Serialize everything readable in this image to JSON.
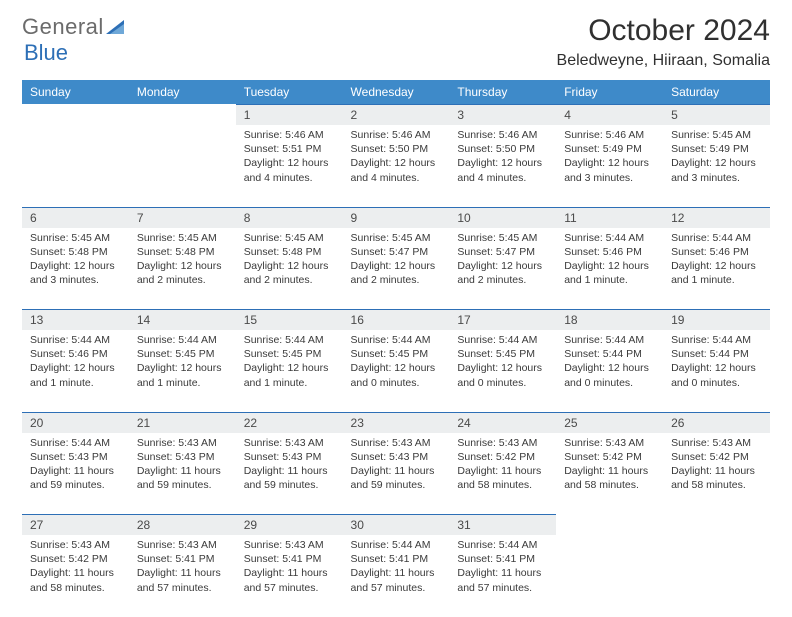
{
  "brand": {
    "text1": "General",
    "text2": "Blue",
    "tri_color": "#2d6fb6",
    "text_color": "#6b6b6b"
  },
  "title": {
    "month": "October 2024",
    "location": "Beledweyne, Hiiraan, Somalia"
  },
  "colors": {
    "header_bg": "#3e8ac9",
    "header_fg": "#ffffff",
    "daynum_bg": "#eceeef",
    "daynum_border": "#2d6fb6",
    "body_bg": "#ffffff",
    "text": "#333333"
  },
  "weekdays": [
    "Sunday",
    "Monday",
    "Tuesday",
    "Wednesday",
    "Thursday",
    "Friday",
    "Saturday"
  ],
  "weeks": [
    [
      null,
      null,
      {
        "n": "1",
        "sr": "5:46 AM",
        "ss": "5:51 PM",
        "dl": "12 hours and 4 minutes."
      },
      {
        "n": "2",
        "sr": "5:46 AM",
        "ss": "5:50 PM",
        "dl": "12 hours and 4 minutes."
      },
      {
        "n": "3",
        "sr": "5:46 AM",
        "ss": "5:50 PM",
        "dl": "12 hours and 4 minutes."
      },
      {
        "n": "4",
        "sr": "5:46 AM",
        "ss": "5:49 PM",
        "dl": "12 hours and 3 minutes."
      },
      {
        "n": "5",
        "sr": "5:45 AM",
        "ss": "5:49 PM",
        "dl": "12 hours and 3 minutes."
      }
    ],
    [
      {
        "n": "6",
        "sr": "5:45 AM",
        "ss": "5:48 PM",
        "dl": "12 hours and 3 minutes."
      },
      {
        "n": "7",
        "sr": "5:45 AM",
        "ss": "5:48 PM",
        "dl": "12 hours and 2 minutes."
      },
      {
        "n": "8",
        "sr": "5:45 AM",
        "ss": "5:48 PM",
        "dl": "12 hours and 2 minutes."
      },
      {
        "n": "9",
        "sr": "5:45 AM",
        "ss": "5:47 PM",
        "dl": "12 hours and 2 minutes."
      },
      {
        "n": "10",
        "sr": "5:45 AM",
        "ss": "5:47 PM",
        "dl": "12 hours and 2 minutes."
      },
      {
        "n": "11",
        "sr": "5:44 AM",
        "ss": "5:46 PM",
        "dl": "12 hours and 1 minute."
      },
      {
        "n": "12",
        "sr": "5:44 AM",
        "ss": "5:46 PM",
        "dl": "12 hours and 1 minute."
      }
    ],
    [
      {
        "n": "13",
        "sr": "5:44 AM",
        "ss": "5:46 PM",
        "dl": "12 hours and 1 minute."
      },
      {
        "n": "14",
        "sr": "5:44 AM",
        "ss": "5:45 PM",
        "dl": "12 hours and 1 minute."
      },
      {
        "n": "15",
        "sr": "5:44 AM",
        "ss": "5:45 PM",
        "dl": "12 hours and 1 minute."
      },
      {
        "n": "16",
        "sr": "5:44 AM",
        "ss": "5:45 PM",
        "dl": "12 hours and 0 minutes."
      },
      {
        "n": "17",
        "sr": "5:44 AM",
        "ss": "5:45 PM",
        "dl": "12 hours and 0 minutes."
      },
      {
        "n": "18",
        "sr": "5:44 AM",
        "ss": "5:44 PM",
        "dl": "12 hours and 0 minutes."
      },
      {
        "n": "19",
        "sr": "5:44 AM",
        "ss": "5:44 PM",
        "dl": "12 hours and 0 minutes."
      }
    ],
    [
      {
        "n": "20",
        "sr": "5:44 AM",
        "ss": "5:43 PM",
        "dl": "11 hours and 59 minutes."
      },
      {
        "n": "21",
        "sr": "5:43 AM",
        "ss": "5:43 PM",
        "dl": "11 hours and 59 minutes."
      },
      {
        "n": "22",
        "sr": "5:43 AM",
        "ss": "5:43 PM",
        "dl": "11 hours and 59 minutes."
      },
      {
        "n": "23",
        "sr": "5:43 AM",
        "ss": "5:43 PM",
        "dl": "11 hours and 59 minutes."
      },
      {
        "n": "24",
        "sr": "5:43 AM",
        "ss": "5:42 PM",
        "dl": "11 hours and 58 minutes."
      },
      {
        "n": "25",
        "sr": "5:43 AM",
        "ss": "5:42 PM",
        "dl": "11 hours and 58 minutes."
      },
      {
        "n": "26",
        "sr": "5:43 AM",
        "ss": "5:42 PM",
        "dl": "11 hours and 58 minutes."
      }
    ],
    [
      {
        "n": "27",
        "sr": "5:43 AM",
        "ss": "5:42 PM",
        "dl": "11 hours and 58 minutes."
      },
      {
        "n": "28",
        "sr": "5:43 AM",
        "ss": "5:41 PM",
        "dl": "11 hours and 57 minutes."
      },
      {
        "n": "29",
        "sr": "5:43 AM",
        "ss": "5:41 PM",
        "dl": "11 hours and 57 minutes."
      },
      {
        "n": "30",
        "sr": "5:44 AM",
        "ss": "5:41 PM",
        "dl": "11 hours and 57 minutes."
      },
      {
        "n": "31",
        "sr": "5:44 AM",
        "ss": "5:41 PM",
        "dl": "11 hours and 57 minutes."
      },
      null,
      null
    ]
  ],
  "labels": {
    "sunrise": "Sunrise: ",
    "sunset": "Sunset: ",
    "daylight": "Daylight: "
  }
}
